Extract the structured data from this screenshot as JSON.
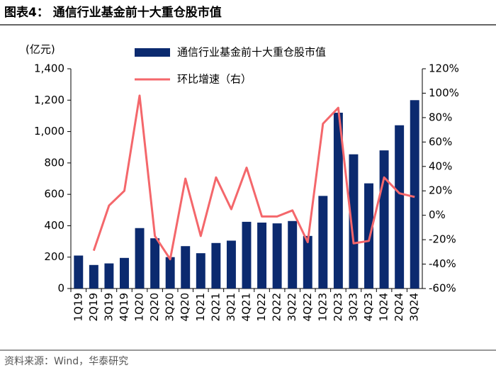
{
  "chart_data": {
    "type": "bar-line",
    "title": "图表4：  通信行业基金前十大重仓股市值",
    "y_unit": "(亿元)",
    "source": "资料来源：Wind，华泰研究",
    "categories": [
      "1Q19",
      "2Q19",
      "3Q19",
      "4Q19",
      "1Q20",
      "2Q20",
      "3Q20",
      "4Q20",
      "1Q21",
      "2Q21",
      "3Q21",
      "4Q21",
      "1Q22",
      "2Q22",
      "3Q22",
      "4Q22",
      "1Q23",
      "2Q23",
      "3Q23",
      "4Q23",
      "1Q24",
      "2Q24",
      "3Q24"
    ],
    "series": [
      {
        "name": "通信行业基金前十大重仓股市值",
        "type": "bar",
        "color": "#0b2a6f",
        "values": [
          210,
          150,
          160,
          195,
          385,
          320,
          200,
          270,
          225,
          290,
          305,
          425,
          420,
          415,
          430,
          335,
          590,
          1120,
          855,
          670,
          880,
          1040,
          1200
        ]
      },
      {
        "name": "环比增速（右）",
        "type": "line",
        "axis": "y2",
        "color": "#f4676b",
        "values": [
          null,
          -29,
          8,
          20,
          98,
          -17,
          -36,
          30,
          -17,
          31,
          5,
          39,
          -1,
          -1,
          4,
          -22,
          75,
          88,
          -23,
          -21,
          31,
          18,
          15
        ]
      }
    ],
    "ylim": [
      0,
      1400
    ],
    "yticks": [
      0,
      200,
      400,
      600,
      800,
      {
        "value": 1000,
        "label": "1,000"
      },
      {
        "value": 1200,
        "label": "1,200"
      },
      {
        "value": 1400,
        "label": "1,400"
      }
    ],
    "y2lim": [
      -60,
      120
    ],
    "y2ticks": [
      {
        "value": -60,
        "label": "-60%"
      },
      {
        "value": -40,
        "label": "-40%"
      },
      {
        "value": -20,
        "label": "-20%"
      },
      {
        "value": 0,
        "label": "0%"
      },
      {
        "value": 20,
        "label": "20%"
      },
      {
        "value": 40,
        "label": "40%"
      },
      {
        "value": 60,
        "label": "60%"
      },
      {
        "value": 80,
        "label": "80%"
      },
      {
        "value": 100,
        "label": "100%"
      },
      {
        "value": 120,
        "label": "120%"
      }
    ],
    "grid": false
  }
}
